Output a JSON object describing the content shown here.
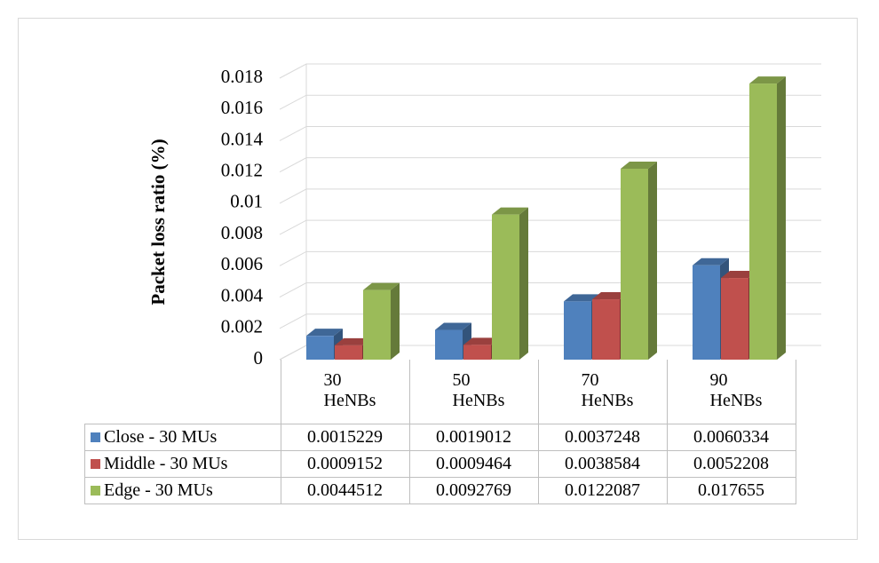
{
  "chart_data": {
    "type": "bar3d",
    "y_label": "Packet loss ratio (%)",
    "categories": [
      "30 HeNBs",
      "50 HeNBs",
      "70 HeNBs",
      "90 HeNBs"
    ],
    "series": [
      {
        "name": "Close - 30 MUs",
        "color": "#4f81bd",
        "values": [
          0.0015229,
          0.0019012,
          0.0037248,
          0.0060334
        ]
      },
      {
        "name": "Middle - 30 MUs",
        "color": "#c0504d",
        "values": [
          0.0009152,
          0.0009464,
          0.0038584,
          0.0052208
        ]
      },
      {
        "name": "Edge - 30 MUs",
        "color": "#9bbb59",
        "values": [
          0.0044512,
          0.0092769,
          0.0122087,
          0.017655
        ]
      }
    ],
    "ylim": [
      0,
      0.018
    ],
    "yticks": [
      0,
      0.002,
      0.004,
      0.006,
      0.008,
      0.01,
      0.012,
      0.014,
      0.016,
      0.018
    ],
    "grid": true
  }
}
